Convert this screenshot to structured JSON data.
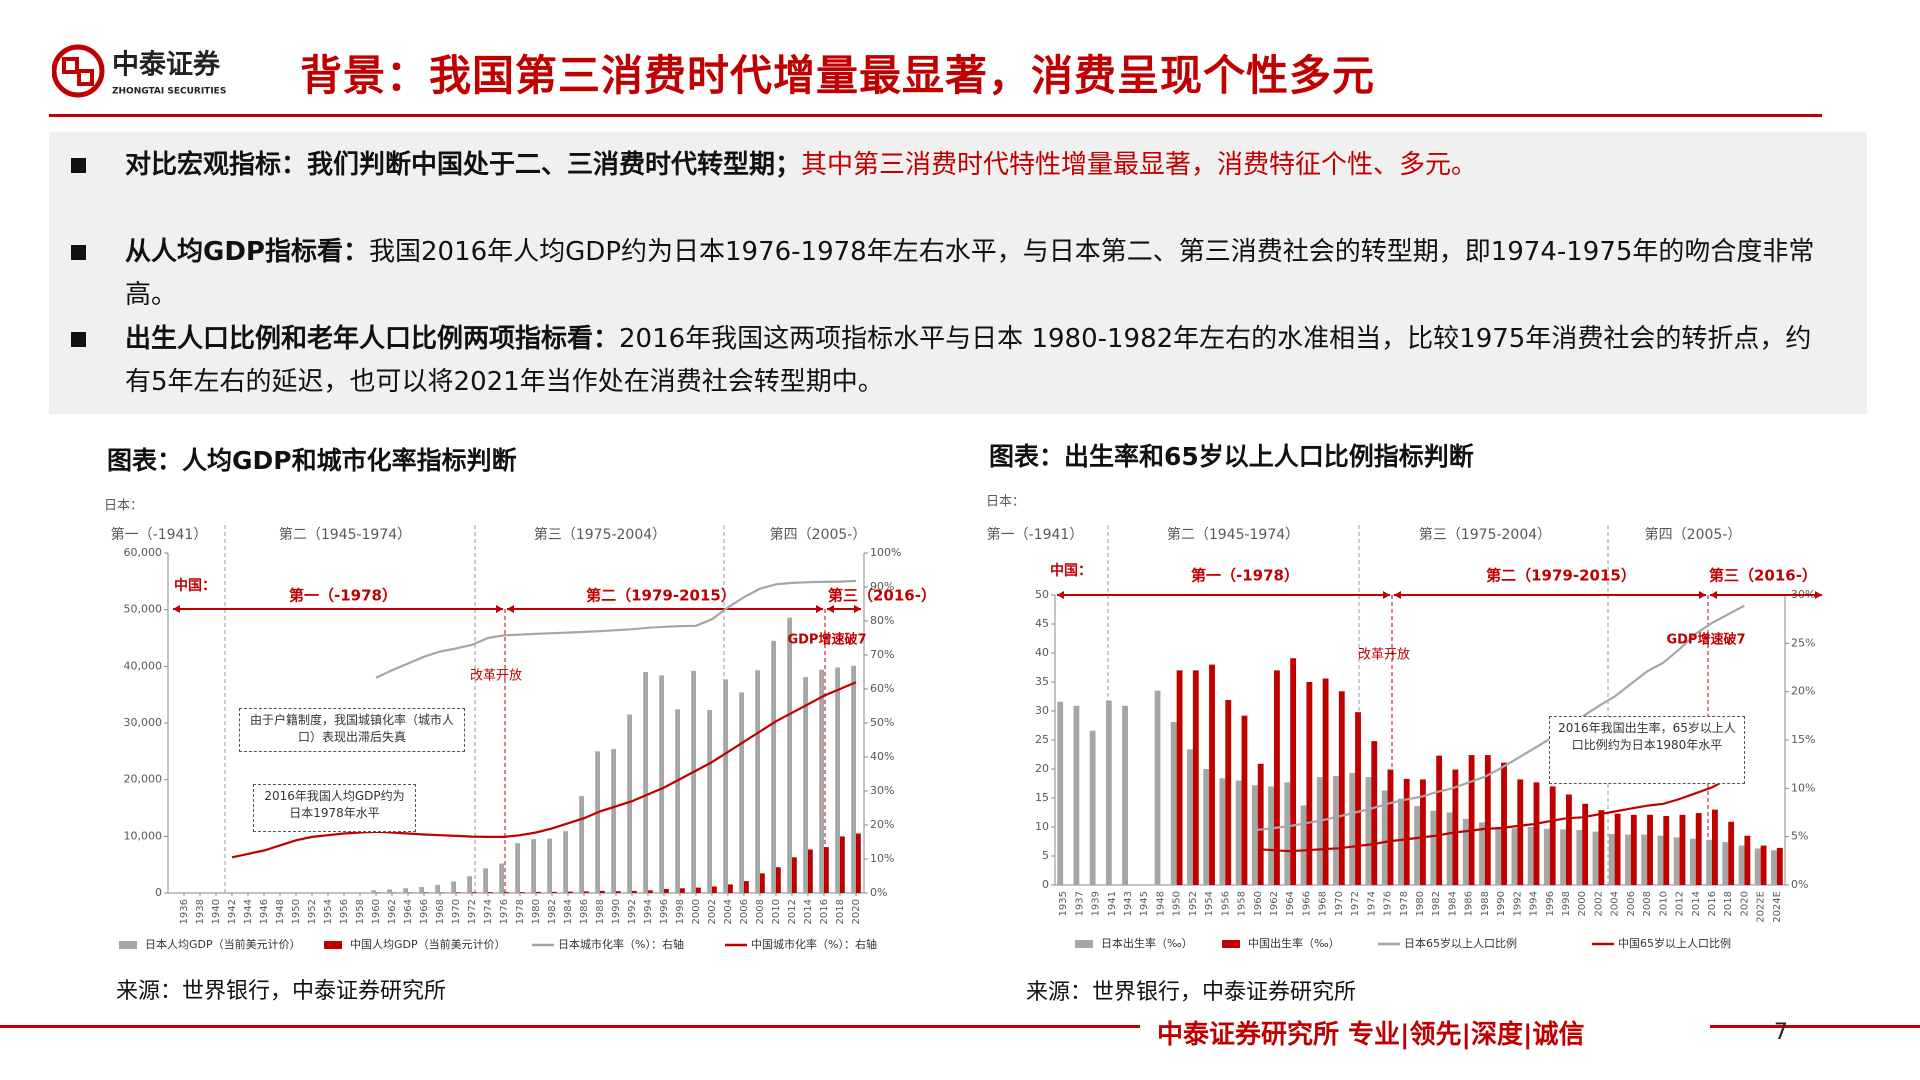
{
  "header": {
    "logo_cn": "中泰证券",
    "logo_en": "ZHONGTAI SECURITIES",
    "title": "背景：我国第三消费时代增量最显著，消费呈现个性多元"
  },
  "bullets": [
    {
      "lead": "对比宏观指标：我们判断中国处于二、三消费时代转型期；",
      "red": "其中第三消费时代特性增量最显著，消费特征个性、多元。"
    },
    {
      "lead": "从人均GDP指标看：",
      "text": "我国2016年人均GDP约为日本1976-1978年左右水平，与日本第二、第三消费社会的转型期，即1974-1975年的吻合度非常高。"
    },
    {
      "lead": "出生人口比例和老年人口比例两项指标看：",
      "text": "2016年我国这两项指标水平与日本 1980-1982年左右的水准相当，比较1975年消费社会的转折点，约有5年左右的延迟，也可以将2021年当作处在消费社会转型期中。"
    }
  ],
  "chart_data": [
    {
      "type": "combo",
      "caption": "图表：人均GDP和城市化率指标判断",
      "source": "来源：世界银行，中泰证券研究所",
      "annotations": {
        "japan_unit": "日本：",
        "japan_periods": [
          "第一（-1941）",
          "第二（1945-1974）",
          "第三（1975-2004）",
          "第四（2005-）"
        ],
        "china_unit": "中国：",
        "china_periods": [
          "第一（-1978）",
          "第二（1979-2015）",
          "第三（2016-）"
        ],
        "reform": "改革开放",
        "gdp_note": "GDP增速破7",
        "notes": [
          "由于户籍制度，我国城镇化率（城市人口）表现出滞后失真",
          "2016年我国人均GDP约为日本1978年水平"
        ]
      },
      "x": [
        1936,
        1938,
        1940,
        1942,
        1944,
        1946,
        1948,
        1950,
        1952,
        1954,
        1956,
        1958,
        1960,
        1962,
        1964,
        1966,
        1968,
        1970,
        1972,
        1974,
        1976,
        1978,
        1980,
        1982,
        1984,
        1986,
        1988,
        1990,
        1992,
        1994,
        1996,
        1998,
        2000,
        2002,
        2004,
        2006,
        2008,
        2010,
        2012,
        2014,
        2016,
        2018,
        2020
      ],
      "xlim": [
        1934,
        2021
      ],
      "xticks": [
        1936,
        1938,
        1940,
        1942,
        1944,
        1946,
        1948,
        1950,
        1952,
        1954,
        1956,
        1958,
        1960,
        1962,
        1964,
        1966,
        1968,
        1970,
        1972,
        1974,
        1976,
        1978,
        1980,
        1982,
        1984,
        1986,
        1988,
        1990,
        1992,
        1994,
        1996,
        1998,
        2000,
        2002,
        2004,
        2006,
        2008,
        2010,
        2012,
        2014,
        2016,
        2018,
        2020
      ],
      "ylim": [
        0,
        60000
      ],
      "yticks": [
        0,
        {
          "value": 10000,
          "label": "10,000"
        },
        {
          "value": 20000,
          "label": "20,000"
        },
        {
          "value": 30000,
          "label": "30,000"
        },
        {
          "value": 40000,
          "label": "40,000"
        },
        {
          "value": 50000,
          "label": "50,000"
        },
        {
          "value": 60000,
          "label": "60,000"
        }
      ],
      "y2lim": [
        0,
        100
      ],
      "y2ticks": [
        {
          "value": 0,
          "label": "0%"
        },
        {
          "value": 10,
          "label": "10%"
        },
        {
          "value": 20,
          "label": "20%"
        },
        {
          "value": 30,
          "label": "30%"
        },
        {
          "value": 40,
          "label": "40%"
        },
        {
          "value": 50,
          "label": "50%"
        },
        {
          "value": 60,
          "label": "60%"
        },
        {
          "value": 70,
          "label": "70%"
        },
        {
          "value": 80,
          "label": "80%"
        },
        {
          "value": 90,
          "label": "90%"
        },
        {
          "value": 100,
          "label": "100%"
        }
      ],
      "series": [
        {
          "name": "日本人均GDP（当前美元计价）",
          "type": "bar",
          "color": "#a6a6a6",
          "values": [
            null,
            null,
            null,
            null,
            null,
            null,
            null,
            null,
            null,
            null,
            null,
            null,
            480,
            630,
            840,
            1060,
            1450,
            2040,
            2950,
            4350,
            5200,
            8800,
            9500,
            9600,
            10900,
            17100,
            25000,
            25400,
            31500,
            39000,
            38400,
            32400,
            39200,
            32300,
            37700,
            35400,
            39300,
            44500,
            48600,
            38100,
            39400,
            39800,
            40100
          ]
        },
        {
          "name": "中国人均GDP（当前美元计价）",
          "type": "bar",
          "color": "#c00000",
          "values": [
            null,
            null,
            null,
            null,
            null,
            null,
            null,
            null,
            null,
            null,
            null,
            null,
            90,
            70,
            85,
            100,
            90,
            110,
            130,
            160,
            165,
            156,
            195,
            203,
            250,
            282,
            369,
            318,
            366,
            473,
            709,
            829,
            959,
            1149,
            1509,
            2099,
            3468,
            4550,
            6300,
            7680,
            8100,
            9980,
            10500
          ]
        },
        {
          "name": "日本城市化率（%）：右轴",
          "type": "line",
          "axis": "y2",
          "color": "#a6a6a6",
          "values": [
            null,
            null,
            null,
            null,
            null,
            null,
            null,
            null,
            null,
            null,
            null,
            null,
            63.3,
            65.5,
            67.5,
            69.5,
            71,
            71.9,
            73,
            75,
            75.8,
            76,
            76.2,
            76.4,
            76.6,
            76.8,
            77,
            77.3,
            77.6,
            78,
            78.3,
            78.5,
            78.6,
            80.5,
            84,
            87,
            89.5,
            90.8,
            91.2,
            91.4,
            91.5,
            91.6,
            91.8
          ]
        },
        {
          "name": "中国城市化率（%）：右轴",
          "type": "line",
          "axis": "y2",
          "color": "#c00000",
          "values": [
            null,
            null,
            null,
            10.5,
            11.5,
            12.5,
            14,
            15.5,
            16.5,
            17,
            17.5,
            17.8,
            18,
            17.8,
            17.5,
            17.2,
            17,
            16.8,
            16.6,
            16.5,
            16.5,
            17,
            17.8,
            19,
            20.5,
            22,
            24,
            25.5,
            27,
            29,
            31,
            33.5,
            36,
            38.5,
            41.5,
            44.5,
            47.5,
            50.5,
            53,
            55.5,
            58,
            60,
            62
          ]
        }
      ]
    },
    {
      "type": "combo",
      "caption": "图表：出生率和65岁以上人口比例指标判断",
      "source": "来源：世界银行，中泰证券研究所",
      "annotations": {
        "japan_unit": "日本：",
        "japan_periods": [
          "第一（-1941）",
          "第二（1945-1974）",
          "第三（1975-2004）",
          "第四（2005-）"
        ],
        "china_unit": "中国：",
        "china_periods": [
          "第一（-1978）",
          "第二（1979-2015）",
          "第三（2016-）"
        ],
        "reform": "改革开放",
        "gdp_note": "GDP增速破7",
        "notes": [
          "2016年我国出生率，65岁以上人口比例约为日本1980年水平"
        ]
      },
      "categories": [
        "1935",
        "1937",
        "1939",
        "1941",
        "1943",
        "1945",
        "1948",
        "1950",
        "1952",
        "1954",
        "1956",
        "1958",
        "1960",
        "1962",
        "1964",
        "1966",
        "1968",
        "1970",
        "1972",
        "1974",
        "1976",
        "1978",
        "1980",
        "1982",
        "1984",
        "1986",
        "1988",
        "1990",
        "1992",
        "1994",
        "1996",
        "1998",
        "2000",
        "2002",
        "2004",
        "2006",
        "2008",
        "2010",
        "2012",
        "2014",
        "2016",
        "2018",
        "2020",
        "2022E",
        "2024E"
      ],
      "ylim": [
        0,
        50
      ],
      "yticks": [
        0,
        5,
        10,
        15,
        20,
        25,
        30,
        35,
        40,
        45,
        50
      ],
      "y2lim": [
        0,
        30
      ],
      "y2ticks": [
        {
          "value": 0,
          "label": "0%"
        },
        {
          "value": 5,
          "label": "5%"
        },
        {
          "value": 10,
          "label": "10%"
        },
        {
          "value": 15,
          "label": "15%"
        },
        {
          "value": 20,
          "label": "20%"
        },
        {
          "value": 25,
          "label": "25%"
        },
        {
          "value": 30,
          "label": "30%"
        }
      ],
      "series": [
        {
          "name": "日本出生率（‰）",
          "type": "bar",
          "color": "#a6a6a6",
          "values": [
            31.6,
            30.9,
            26.6,
            31.8,
            30.9,
            null,
            33.5,
            28.1,
            23.4,
            20,
            18.4,
            18,
            17.2,
            17,
            17.7,
            13.7,
            18.6,
            18.8,
            19.3,
            18.6,
            16.3,
            14.9,
            13.6,
            12.8,
            12.5,
            11.4,
            10.8,
            10,
            9.8,
            10,
            9.7,
            9.6,
            9.5,
            9.2,
            8.8,
            8.7,
            8.7,
            8.5,
            8.2,
            8,
            7.8,
            7.4,
            6.8,
            6.3,
            6
          ]
        },
        {
          "name": "中国出生率（‰）",
          "type": "bar",
          "color": "#c00000",
          "values": [
            null,
            null,
            null,
            null,
            null,
            null,
            null,
            37,
            37,
            38,
            31.9,
            29.2,
            20.9,
            37,
            39.1,
            35,
            35.6,
            33.4,
            29.8,
            24.8,
            19.9,
            18.3,
            18.2,
            22.3,
            19.9,
            22.4,
            22.4,
            21.1,
            18.2,
            17.7,
            17,
            15.6,
            14,
            12.9,
            12.3,
            12.1,
            12.1,
            11.9,
            12.1,
            12.4,
            13,
            10.9,
            8.5,
            6.8,
            6.4
          ]
        },
        {
          "name": "日本65岁以上人口比例",
          "type": "line",
          "axis": "y2",
          "color": "#a6a6a6",
          "values": [
            null,
            null,
            null,
            null,
            null,
            null,
            null,
            null,
            null,
            null,
            null,
            null,
            5.7,
            5.9,
            6.1,
            6.4,
            6.7,
            7.1,
            7.5,
            7.9,
            8.4,
            8.8,
            9.1,
            9.6,
            10,
            10.6,
            11.2,
            12.1,
            13.1,
            14.1,
            15.1,
            16.2,
            17.4,
            18.5,
            19.5,
            20.8,
            22.1,
            23,
            24.4,
            26,
            27.1,
            28,
            28.9,
            null,
            null
          ]
        },
        {
          "name": "中国65岁以上人口比例",
          "type": "line",
          "axis": "y2",
          "color": "#c00000",
          "values": [
            null,
            null,
            null,
            null,
            null,
            null,
            null,
            null,
            null,
            null,
            null,
            null,
            3.7,
            3.6,
            3.5,
            3.6,
            3.7,
            3.8,
            4,
            4.2,
            4.5,
            4.7,
            4.9,
            5.1,
            5.4,
            5.6,
            5.8,
            5.9,
            6.1,
            6.3,
            6.6,
            6.9,
            7,
            7.3,
            7.6,
            7.9,
            8.2,
            8.4,
            8.9,
            9.5,
            10.1,
            11,
            12,
            null,
            null
          ]
        }
      ]
    }
  ],
  "footer": {
    "slogan": "中泰证券研究所 专业|领先|深度|诚信",
    "page": 7
  }
}
